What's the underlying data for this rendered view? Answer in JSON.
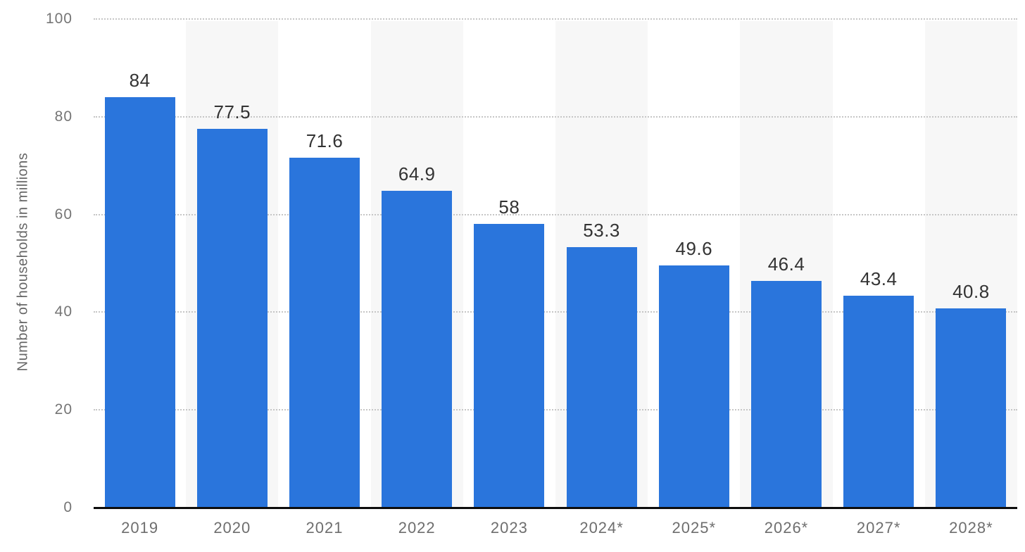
{
  "chart_data": {
    "type": "bar",
    "title": "",
    "ylabel": "Number of households in millions",
    "xlabel": "",
    "categories": [
      "2019",
      "2020",
      "2021",
      "2022",
      "2023",
      "2024*",
      "2025*",
      "2026*",
      "2027*",
      "2028*"
    ],
    "values": [
      84,
      77.5,
      71.6,
      64.9,
      58,
      53.3,
      49.6,
      46.4,
      43.4,
      40.8
    ],
    "value_labels": [
      "84",
      "77.5",
      "71.6",
      "64.9",
      "58",
      "53.3",
      "49.6",
      "46.4",
      "43.4",
      "40.8"
    ],
    "ylim": [
      0,
      100
    ],
    "yticks": [
      0,
      20,
      40,
      60,
      80,
      100
    ],
    "grid": "horizontal-dotted",
    "legend": "none",
    "colors": {
      "bar": "#2a75dc",
      "stripe": "#f7f7f7",
      "gridline": "#c6c6c6",
      "axis_line": "#0d0d0d",
      "value_label": "#333333",
      "tick_label": "#6e6e6e",
      "axis_title": "#666666"
    }
  }
}
